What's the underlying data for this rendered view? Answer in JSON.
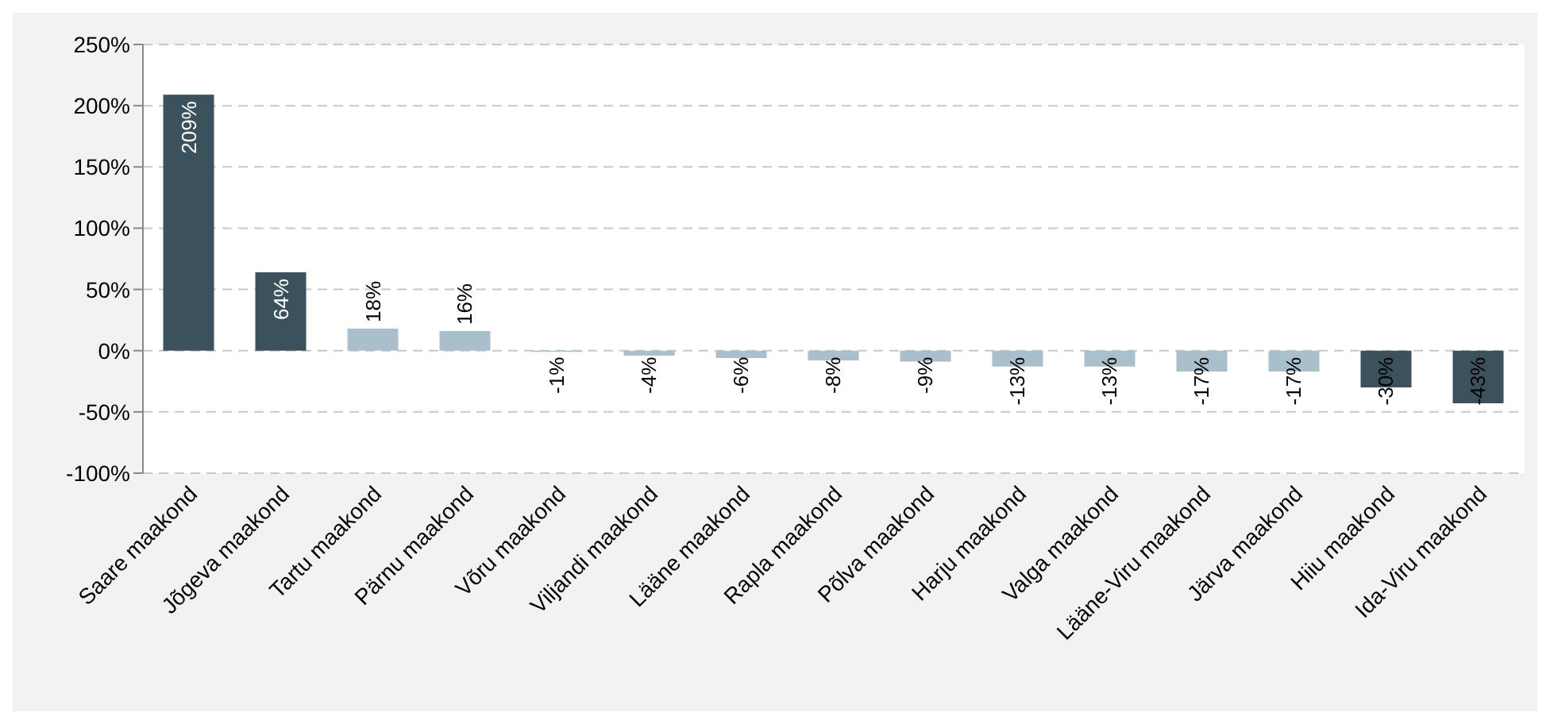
{
  "chart_data": {
    "type": "bar",
    "categories": [
      "Saare maakond",
      "Jõgeva maakond",
      "Tartu maakond",
      "Pärnu maakond",
      "Võru maakond",
      "Viljandi maakond",
      "Lääne maakond",
      "Rapla maakond",
      "Põlva maakond",
      "Harju maakond",
      "Valga maakond",
      "Lääne-Viru maakond",
      "Järva maakond",
      "Hiiu maakond",
      "Ida-Viru maakond"
    ],
    "values": [
      209,
      64,
      18,
      16,
      -1,
      -4,
      -6,
      -8,
      -9,
      -13,
      -13,
      -17,
      -17,
      -30,
      -43
    ],
    "colors": [
      "#3b525c",
      "#3b525c",
      "#a9c0cc",
      "#a9c0cc",
      "#a9c0cc",
      "#a9c0cc",
      "#a9c0cc",
      "#a9c0cc",
      "#a9c0cc",
      "#a9c0cc",
      "#a9c0cc",
      "#a9c0cc",
      "#a9c0cc",
      "#3b525c",
      "#3b525c"
    ],
    "value_labels": [
      "209%",
      "64%",
      "18%",
      "16%",
      "-1%",
      "-4%",
      "-6%",
      "-8%",
      "-9%",
      "-13%",
      "-13%",
      "-17%",
      "-17%",
      "-30%",
      "-43%"
    ],
    "ylim": [
      -100,
      250
    ],
    "yticks": [
      {
        "value": -100,
        "label": "-100%"
      },
      {
        "value": -50,
        "label": "-50%"
      },
      {
        "value": 0,
        "label": "0%"
      },
      {
        "value": 50,
        "label": "50%"
      },
      {
        "value": 100,
        "label": "100%"
      },
      {
        "value": 150,
        "label": "150%"
      },
      {
        "value": 200,
        "label": "200%"
      },
      {
        "value": 250,
        "label": "250%"
      }
    ],
    "grid": "y"
  }
}
